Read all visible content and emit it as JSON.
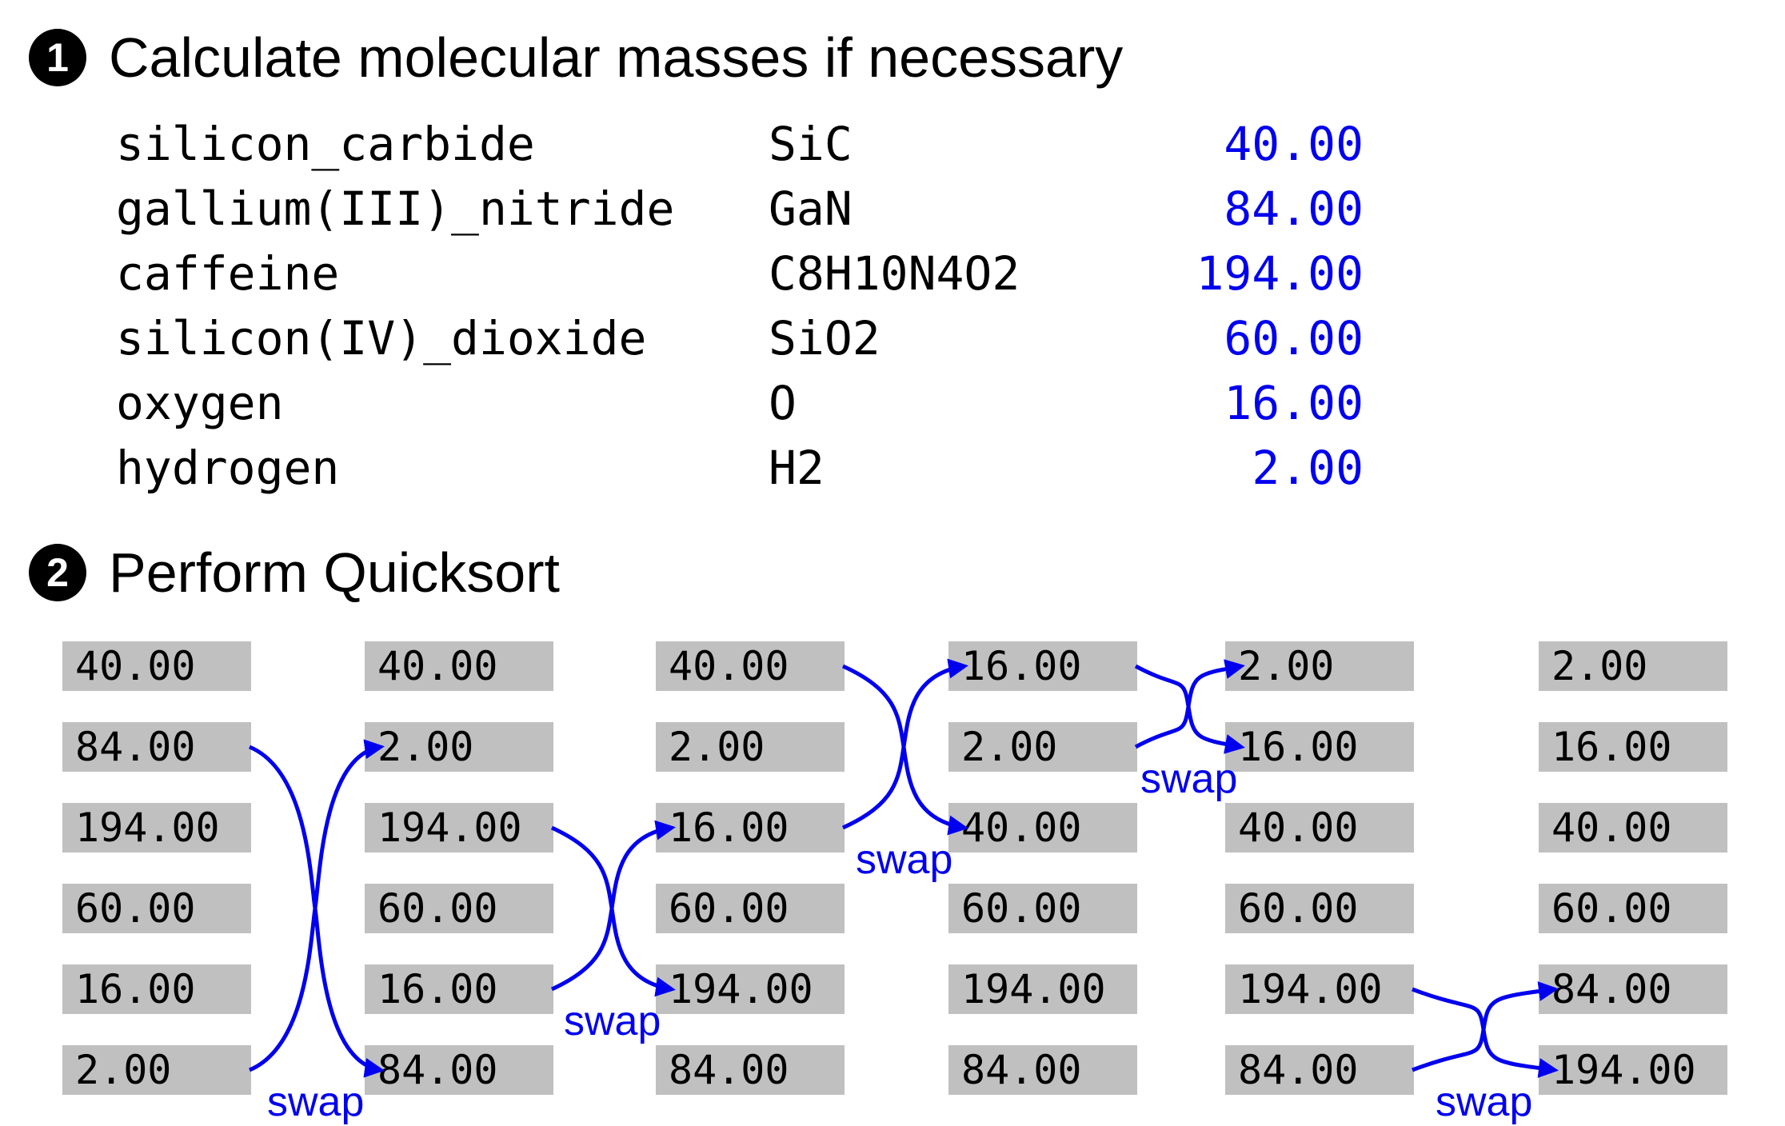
{
  "step1": {
    "number": "1",
    "title": "Calculate molecular masses if necessary"
  },
  "compounds": [
    {
      "name": "silicon_carbide",
      "formula": "SiC",
      "mass": "40.00"
    },
    {
      "name": "gallium(III)_nitride",
      "formula": "GaN",
      "mass": "84.00"
    },
    {
      "name": "caffeine",
      "formula": "C8H10N4O2",
      "mass": "194.00"
    },
    {
      "name": "silicon(IV)_dioxide",
      "formula": "SiO2",
      "mass": "60.00"
    },
    {
      "name": "oxygen",
      "formula": "O",
      "mass": "16.00"
    },
    {
      "name": "hydrogen",
      "formula": "H2",
      "mass": "2.00"
    }
  ],
  "step2": {
    "number": "2",
    "title": "Perform Quicksort"
  },
  "quicksort_states": [
    [
      "40.00",
      "84.00",
      "194.00",
      "60.00",
      "16.00",
      "2.00"
    ],
    [
      "40.00",
      "2.00",
      "194.00",
      "60.00",
      "16.00",
      "84.00"
    ],
    [
      "40.00",
      "2.00",
      "16.00",
      "60.00",
      "194.00",
      "84.00"
    ],
    [
      "16.00",
      "2.00",
      "40.00",
      "60.00",
      "194.00",
      "84.00"
    ],
    [
      "2.00",
      "16.00",
      "40.00",
      "60.00",
      "194.00",
      "84.00"
    ],
    [
      "2.00",
      "16.00",
      "40.00",
      "60.00",
      "84.00",
      "194.00"
    ]
  ],
  "swaps": [
    {
      "after_state": 0,
      "indices": [
        1,
        5
      ],
      "label": "swap"
    },
    {
      "after_state": 1,
      "indices": [
        2,
        4
      ],
      "label": "swap"
    },
    {
      "after_state": 2,
      "indices": [
        0,
        2
      ],
      "label": "swap"
    },
    {
      "after_state": 3,
      "indices": [
        0,
        1
      ],
      "label": "swap"
    },
    {
      "after_state": 4,
      "indices": [
        4,
        5
      ],
      "label": "swap"
    }
  ],
  "colors": {
    "mass_value": "#0000ee",
    "swap_arrow": "#0000ee",
    "cell_background": "#c0c0c0",
    "badge": "#000000"
  }
}
